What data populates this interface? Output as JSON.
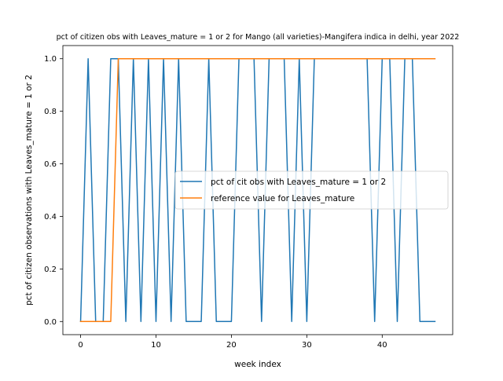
{
  "chart_data": {
    "type": "line",
    "title": "pct of citizen obs with Leaves_mature = 1 or 2 for Mango (all varieties)-Mangifera indica in delhi, year 2022",
    "xlabel": "week index",
    "ylabel": "pct of citizen observations with Leaves_mature = 1 or 2",
    "xlim": [
      -2.35,
      49.35
    ],
    "ylim": [
      -0.05,
      1.05
    ],
    "xticks": [
      0,
      10,
      20,
      30,
      40
    ],
    "yticks": [
      0.0,
      0.2,
      0.4,
      0.6,
      0.8,
      1.0
    ],
    "xtick_labels": [
      "0",
      "10",
      "20",
      "30",
      "40"
    ],
    "ytick_labels": [
      "0.0",
      "0.2",
      "0.4",
      "0.6",
      "0.8",
      "1.0"
    ],
    "grid": false,
    "legend_position": "center-right",
    "x": [
      0,
      1,
      2,
      3,
      4,
      5,
      6,
      7,
      8,
      9,
      10,
      11,
      12,
      13,
      14,
      15,
      16,
      17,
      18,
      19,
      20,
      21,
      22,
      23,
      24,
      25,
      26,
      27,
      28,
      29,
      30,
      31,
      32,
      33,
      34,
      35,
      36,
      37,
      38,
      39,
      40,
      41,
      42,
      43,
      44,
      45,
      46,
      47
    ],
    "series": [
      {
        "name": "pct of cit obs with Leaves_mature = 1 or 2",
        "color": "#1f77b4",
        "values": [
          0,
          1,
          0,
          0,
          1,
          1,
          0,
          1,
          0,
          1,
          0,
          1,
          0,
          1,
          0,
          0,
          0,
          1,
          0,
          0,
          0,
          1,
          1,
          1,
          0,
          1,
          1,
          1,
          0,
          1,
          0,
          1,
          1,
          1,
          1,
          1,
          1,
          1,
          1,
          0,
          1,
          1,
          0,
          1,
          1,
          0,
          0,
          0
        ]
      },
      {
        "name": "reference value for Leaves_mature",
        "color": "#ff7f0e",
        "values": [
          0,
          0,
          0,
          0,
          0,
          1,
          1,
          1,
          1,
          1,
          1,
          1,
          1,
          1,
          1,
          1,
          1,
          1,
          1,
          1,
          1,
          1,
          1,
          1,
          1,
          1,
          1,
          1,
          1,
          1,
          1,
          1,
          1,
          1,
          1,
          1,
          1,
          1,
          1,
          1,
          1,
          1,
          1,
          1,
          1,
          1,
          1,
          1
        ]
      }
    ]
  }
}
